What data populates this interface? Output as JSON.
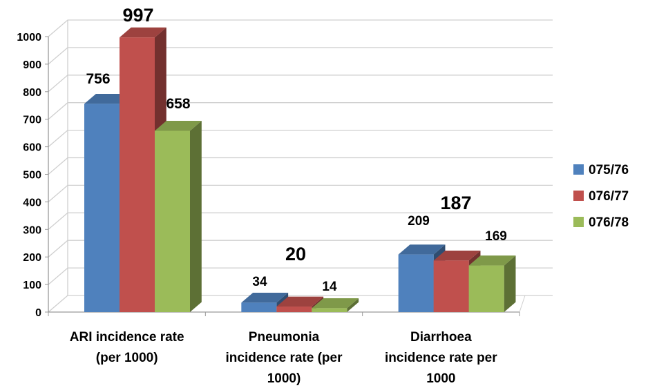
{
  "chart_data": {
    "type": "bar",
    "title": "",
    "xlabel": "",
    "ylabel": "",
    "ylim": [
      0,
      1000
    ],
    "yticks": [
      0,
      100,
      200,
      300,
      400,
      500,
      600,
      700,
      800,
      900,
      1000
    ],
    "categories": [
      [
        "ARI incidence rate",
        "(per 1000)"
      ],
      [
        "Pneumonia",
        "incidence rate (per",
        "1000)"
      ],
      [
        "Diarrhoea",
        "incidence rate per",
        "1000"
      ]
    ],
    "series": [
      {
        "name": "075/76",
        "color": "#4f81bd",
        "values": [
          756,
          34,
          209
        ]
      },
      {
        "name": "076/77",
        "color": "#c0504d",
        "values": [
          997,
          20,
          187
        ]
      },
      {
        "name": "076/78",
        "color": "#9bbb59",
        "values": [
          658,
          14,
          169
        ]
      }
    ],
    "grid": true,
    "legend": "right",
    "style": "3d-clustered-column"
  }
}
